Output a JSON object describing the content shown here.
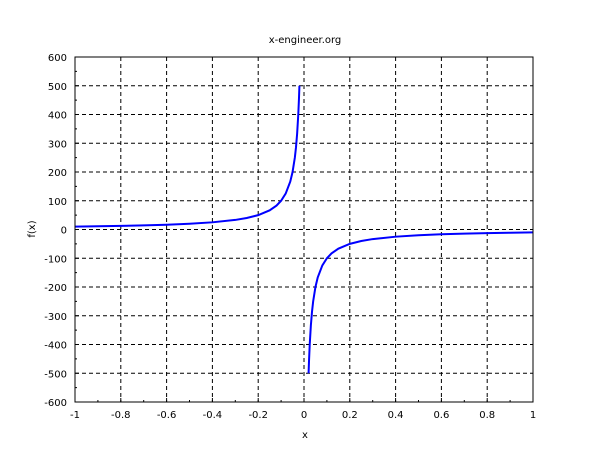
{
  "chart_data": {
    "type": "line",
    "title": "x-engineer.org",
    "xlabel": "x",
    "ylabel": "f(x)",
    "xlim": [
      -1,
      1
    ],
    "ylim": [
      -600,
      600
    ],
    "xticks": [
      "-1",
      "-0.8",
      "-0.6",
      "-0.4",
      "-0.2",
      "0",
      "0.2",
      "0.4",
      "0.6",
      "0.8",
      "1"
    ],
    "yticks": [
      "-600",
      "-500",
      "-400",
      "-300",
      "-200",
      "-100",
      "0",
      "100",
      "200",
      "300",
      "400",
      "500",
      "600"
    ],
    "grid": true,
    "line_color": "#0000ff",
    "series": [
      {
        "x": [
          -1,
          -0.9,
          -0.8,
          -0.7,
          -0.6,
          -0.5,
          -0.4,
          -0.3,
          -0.25,
          -0.2,
          -0.15,
          -0.12,
          -0.1,
          -0.08,
          -0.06,
          -0.05,
          -0.04,
          -0.035,
          -0.03,
          -0.025,
          -0.022,
          -0.02
        ],
        "y": [
          10,
          11.1,
          12.5,
          14.3,
          16.7,
          20,
          25,
          33.3,
          40,
          50,
          66.7,
          83.3,
          100,
          125,
          166.7,
          200,
          250,
          285.7,
          333.3,
          400,
          454.5,
          500
        ]
      },
      {
        "x": [
          0.02,
          0.022,
          0.025,
          0.03,
          0.035,
          0.04,
          0.05,
          0.06,
          0.08,
          0.1,
          0.12,
          0.15,
          0.2,
          0.25,
          0.3,
          0.4,
          0.5,
          0.6,
          0.7,
          0.8,
          0.9,
          1
        ],
        "y": [
          -500,
          -454.5,
          -400,
          -333.3,
          -285.7,
          -250,
          -200,
          -166.7,
          -125,
          -100,
          -83.3,
          -66.7,
          -50,
          -40,
          -33.3,
          -25,
          -20,
          -16.7,
          -14.3,
          -12.5,
          -11.1,
          -10
        ]
      }
    ]
  }
}
